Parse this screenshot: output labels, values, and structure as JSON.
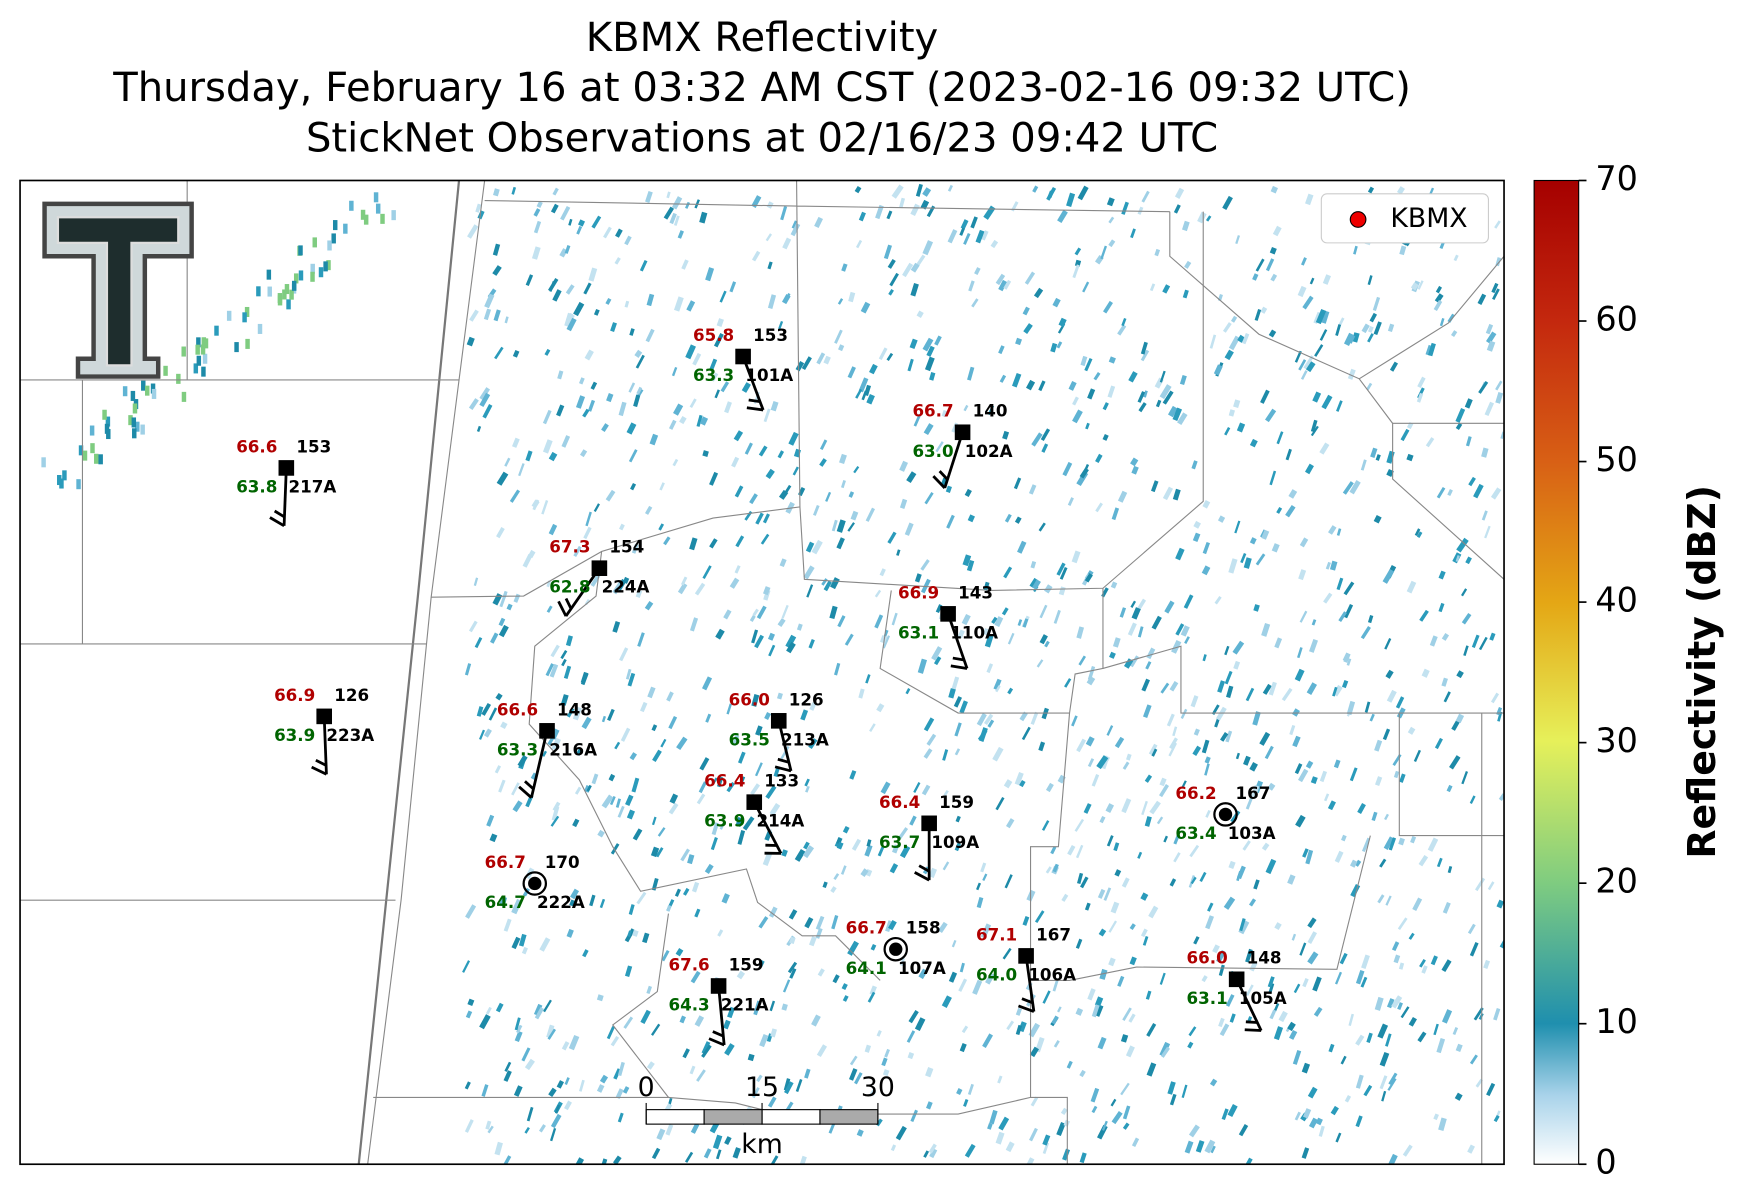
{
  "title_lines": [
    "KBMX Reflectivity",
    "Thursday, February 16 at 03:32 AM CST (2023-02-16 09:32 UTC)",
    "StickNet Observations at 02/16/23 09:42 UTC"
  ],
  "legend": "KBMX",
  "stations": [
    {
      "id": "101A",
      "temperature": "65.8",
      "dewpoint": "63.3",
      "pressure": "153"
    },
    {
      "id": "102A",
      "temperature": "66.7",
      "dewpoint": "63.0",
      "pressure": "140"
    },
    {
      "id": "217A",
      "temperature": "66.6",
      "dewpoint": "63.8",
      "pressure": "153"
    },
    {
      "id": "224A",
      "temperature": "67.3",
      "dewpoint": "62.8",
      "pressure": "154"
    },
    {
      "id": "110A",
      "temperature": "66.9",
      "dewpoint": "63.1",
      "pressure": "143"
    },
    {
      "id": "223A",
      "temperature": "66.9",
      "dewpoint": "63.9",
      "pressure": "126"
    },
    {
      "id": "216A",
      "temperature": "66.6",
      "dewpoint": "63.3",
      "pressure": "148"
    },
    {
      "id": "213A",
      "temperature": "66.0",
      "dewpoint": "63.5",
      "pressure": "126"
    },
    {
      "id": "214A",
      "temperature": "66.4",
      "dewpoint": "63.9",
      "pressure": "133"
    },
    {
      "id": "109A",
      "temperature": "66.4",
      "dewpoint": "63.7",
      "pressure": "159"
    },
    {
      "id": "103A",
      "temperature": "66.2",
      "dewpoint": "63.4",
      "pressure": "167"
    },
    {
      "id": "222A",
      "temperature": "66.7",
      "dewpoint": "64.7",
      "pressure": "170"
    },
    {
      "id": "107A",
      "temperature": "66.7",
      "dewpoint": "64.1",
      "pressure": "158"
    },
    {
      "id": "106A",
      "temperature": "67.1",
      "dewpoint": "64.0",
      "pressure": "167"
    },
    {
      "id": "221A",
      "temperature": "67.6",
      "dewpoint": "64.3",
      "pressure": "159"
    },
    {
      "id": "105A",
      "temperature": "66.0",
      "dewpoint": "63.1",
      "pressure": "148"
    }
  ],
  "colorbar": {
    "label": "Reflectivity (dBZ)",
    "lim": [
      0,
      70
    ],
    "ticks": [
      0,
      10,
      20,
      30,
      40,
      50,
      60,
      70
    ]
  },
  "scale_bar": {
    "ticks": [
      0,
      15,
      30
    ],
    "unit": "km"
  }
}
